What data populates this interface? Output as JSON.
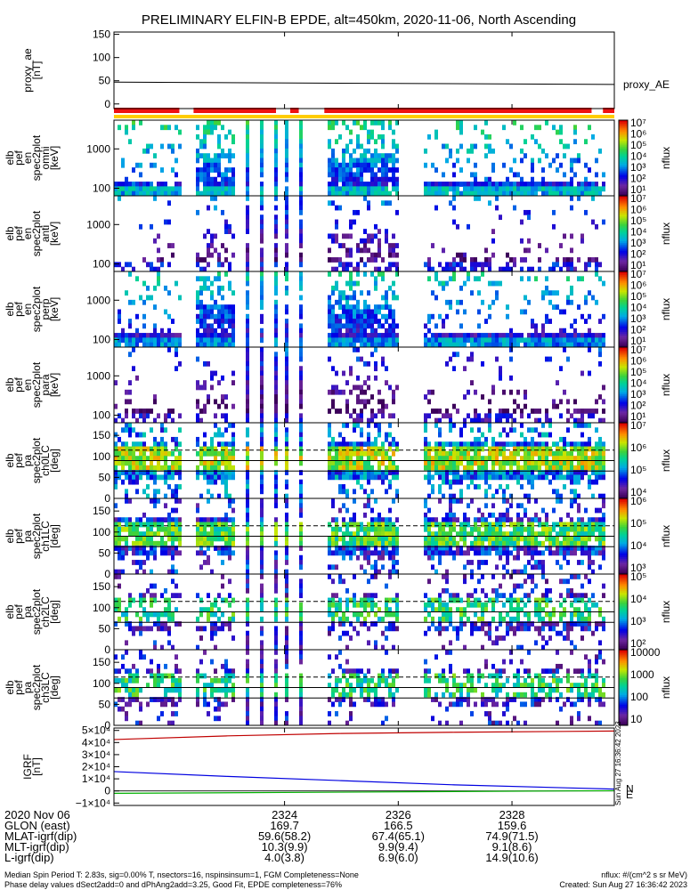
{
  "chart_data": {
    "type": "heatmap",
    "title": "PRELIMINARY ELFIN-B EPDE, alt=450km, 2020-11-06, North Ascending",
    "x_ticks": [
      "2324",
      "2326",
      "2328"
    ],
    "panels": [
      {
        "id": "proxy_ae",
        "type": "line",
        "ylabel": [
          "proxy_ae",
          "[nT]"
        ],
        "yticks": [
          "150",
          "100",
          "50",
          "0"
        ],
        "ylim": [
          -10,
          155
        ],
        "legend": "proxy_AE",
        "series": [
          {
            "x": [
              2321.0,
              2329.8
            ],
            "y": [
              47,
              42
            ]
          }
        ]
      },
      {
        "id": "pef_spec",
        "type": "heatmap",
        "ylabel": [
          "elb",
          "pef",
          "en",
          "spec2plot",
          "omni",
          "[keV]"
        ],
        "yticks": [
          "1000",
          "100"
        ],
        "zlabel": "nflux",
        "zticks": [
          "10⁷",
          "10⁶",
          "10⁵",
          "10⁴",
          "10³",
          "10²",
          "10¹"
        ],
        "data_spans_x": [
          [
            2321.0,
            2322.15
          ],
          [
            2322.4,
            2323.1
          ],
          [
            2324.7,
            2326.0
          ],
          [
            2326.4,
            2329.6
          ]
        ]
      },
      {
        "id": "pef_anti",
        "type": "heatmap",
        "ylabel": [
          "elb",
          "pef",
          "en",
          "spec2plot",
          "anti",
          "[keV]"
        ],
        "yticks": [
          "1000",
          "100"
        ],
        "zlabel": "nflux",
        "zticks": [
          "10⁷",
          "10⁶",
          "10⁵",
          "10⁴",
          "10³",
          "10²",
          "10¹"
        ]
      },
      {
        "id": "pef_perp",
        "type": "heatmap",
        "ylabel": [
          "elb",
          "pef",
          "en",
          "spec2plot",
          "perp",
          "[keV]"
        ],
        "yticks": [
          "1000",
          "100"
        ],
        "zlabel": "nflux",
        "zticks": [
          "10⁷",
          "10⁶",
          "10⁵",
          "10⁴",
          "10³",
          "10²",
          "10¹"
        ]
      },
      {
        "id": "pef_para",
        "type": "heatmap",
        "ylabel": [
          "elb",
          "pef",
          "en",
          "spec2plot",
          "para",
          "[keV]"
        ],
        "yticks": [
          "1000",
          "100"
        ],
        "zlabel": "nflux",
        "zticks": [
          "10⁷",
          "10⁶",
          "10⁵",
          "10⁴",
          "10³",
          "10²",
          "10¹"
        ]
      },
      {
        "id": "pef_ch0",
        "type": "heatmap",
        "ylabel": [
          "elb",
          "pef",
          "pa",
          "spec2plot",
          "ch0LC",
          "[deg]"
        ],
        "yticks": [
          "150",
          "100",
          "50",
          "0"
        ],
        "zlabel": "nflux",
        "zticks": [
          "10⁷",
          "10⁶",
          "10⁵",
          "10⁴"
        ]
      },
      {
        "id": "pef_ch1",
        "type": "heatmap",
        "ylabel": [
          "elb",
          "pef",
          "pa",
          "spec2plot",
          "ch1LC",
          "[deg]"
        ],
        "yticks": [
          "150",
          "100",
          "50",
          "0"
        ],
        "zlabel": "nflux",
        "zticks": [
          "10⁶",
          "10⁵",
          "10⁴",
          "10³"
        ]
      },
      {
        "id": "pef_ch2",
        "type": "heatmap",
        "ylabel": [
          "elb",
          "pef",
          "pa",
          "spec2plot",
          "ch2LC",
          "[deg]"
        ],
        "yticks": [
          "150",
          "100",
          "50",
          "0"
        ],
        "zlabel": "nflux",
        "zticks": [
          "10⁵",
          "10⁴",
          "10³",
          "10²"
        ]
      },
      {
        "id": "pef_ch3",
        "type": "heatmap",
        "ylabel": [
          "elb",
          "pef",
          "pa",
          "spec2plot",
          "ch3LC",
          "[deg]"
        ],
        "yticks": [
          "150",
          "100",
          "50",
          "0"
        ],
        "zlabel": "nflux",
        "zticks": [
          "10000",
          "1000",
          "100",
          "10"
        ]
      },
      {
        "id": "igrf",
        "type": "line",
        "ylabel": [
          "IGRF",
          "[nT]"
        ],
        "yticks": [
          "5×10⁴",
          "4×10⁴",
          "3×10⁴",
          "2×10⁴",
          "1×10⁴",
          "0",
          "−1×10⁴"
        ],
        "ylim": [
          -12000,
          52000
        ],
        "series": [
          {
            "color": "#c00000",
            "x": [
              2321.0,
              2323.0,
              2325.0,
              2327.0,
              2329.8
            ],
            "y": [
              42500,
              45500,
              47500,
              48500,
              49500
            ]
          },
          {
            "color": "#0000e0",
            "x": [
              2321.0,
              2323.0,
              2325.0,
              2327.0,
              2329.8
            ],
            "y": [
              16000,
              12000,
              8500,
              5000,
              1500
            ]
          },
          {
            "color": "#00b000",
            "x": [
              2321.0,
              2325.0,
              2329.8
            ],
            "y": [
              -2000,
              -1000,
              200
            ]
          }
        ],
        "legend": [
          "N",
          "E"
        ]
      }
    ],
    "ephemeris": {
      "date": "2020 Nov 06",
      "rows": [
        {
          "label": "GLON (east)",
          "values": [
            "169.7",
            "166.5",
            "159.6"
          ]
        },
        {
          "label": "MLAT-igrf(dip)",
          "values": [
            "59.6(58.2)",
            "67.4(65.1)",
            "74.9(71.5)"
          ]
        },
        {
          "label": "MLT-igrf(dip)",
          "values": [
            "10.3(9.9)",
            "9.9(9.4)",
            "9.1(8.6)"
          ]
        },
        {
          "label": "L-igrf(dip)",
          "values": [
            "4.0(3.8)",
            "6.9(6.0)",
            "14.9(10.6)"
          ]
        }
      ]
    }
  },
  "footer": {
    "line1_left": "Median Spin Period T: 2.83s, sig=0.00% T, nsectors=16, nspinsinsum=1, FGM Completeness=None",
    "line2_left": "Phase delay values dSect2add=0 and dPhAng2add=3.25, Good Fit, EPDE completeness=76%",
    "line1_right": "nflux: #/(cm^2 s sr MeV)",
    "line2_right": "Created: Sun Aug 27 16:36:42 2023",
    "side_stamp": "Sun Aug 27 16:36:42 2023"
  }
}
